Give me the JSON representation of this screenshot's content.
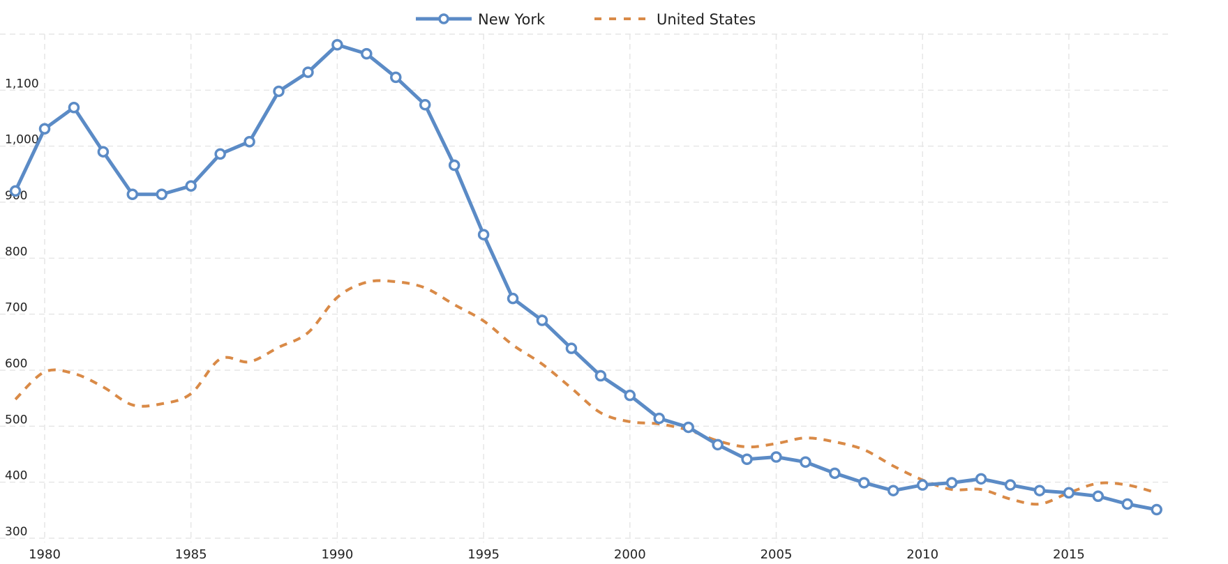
{
  "chart_data": {
    "type": "line",
    "title": "",
    "xlabel": "",
    "ylabel": "",
    "x": [
      1979,
      1980,
      1981,
      1982,
      1983,
      1984,
      1985,
      1986,
      1987,
      1988,
      1989,
      1990,
      1991,
      1992,
      1993,
      1994,
      1995,
      1996,
      1997,
      1998,
      1999,
      2000,
      2001,
      2002,
      2003,
      2004,
      2005,
      2006,
      2007,
      2008,
      2009,
      2010,
      2011,
      2012,
      2013,
      2014,
      2015,
      2016,
      2017,
      2018
    ],
    "series": [
      {
        "name": "New York",
        "color": "#5b8bc6",
        "style": "solid-with-markers",
        "values": [
          920,
          1031,
          1069,
          990,
          914,
          914,
          929,
          986,
          1008,
          1098,
          1132,
          1181,
          1165,
          1123,
          1074,
          966,
          842,
          728,
          689,
          639,
          590,
          555,
          514,
          498,
          467,
          441,
          445,
          436,
          416,
          399,
          385,
          395,
          399,
          406,
          395,
          385,
          381,
          375,
          361,
          351
        ]
      },
      {
        "name": "United States",
        "color": "#d98a47",
        "style": "dashed",
        "values": [
          548,
          597,
          594,
          570,
          538,
          540,
          558,
          620,
          615,
          641,
          667,
          730,
          757,
          758,
          747,
          717,
          688,
          645,
          611,
          568,
          524,
          508,
          504,
          493,
          474,
          463,
          469,
          479,
          472,
          458,
          429,
          404,
          387,
          387,
          370,
          361,
          381,
          398,
          395,
          381
        ]
      }
    ],
    "ylim": [
      300,
      1200
    ],
    "xlim": [
      1979,
      2018
    ],
    "yticks": [
      300,
      400,
      500,
      600,
      700,
      800,
      900,
      1000,
      1100
    ],
    "ytick_labels": [
      "300",
      "400",
      "500",
      "600",
      "700",
      "800",
      "900",
      "1,000",
      "1,100"
    ],
    "xticks": [
      1980,
      1985,
      1990,
      1995,
      2000,
      2005,
      2010,
      2015
    ],
    "xtick_labels": [
      "1980",
      "1985",
      "1990",
      "1995",
      "2000",
      "2005",
      "2010",
      "2015"
    ],
    "grid": true,
    "legend_position": "top-center"
  }
}
